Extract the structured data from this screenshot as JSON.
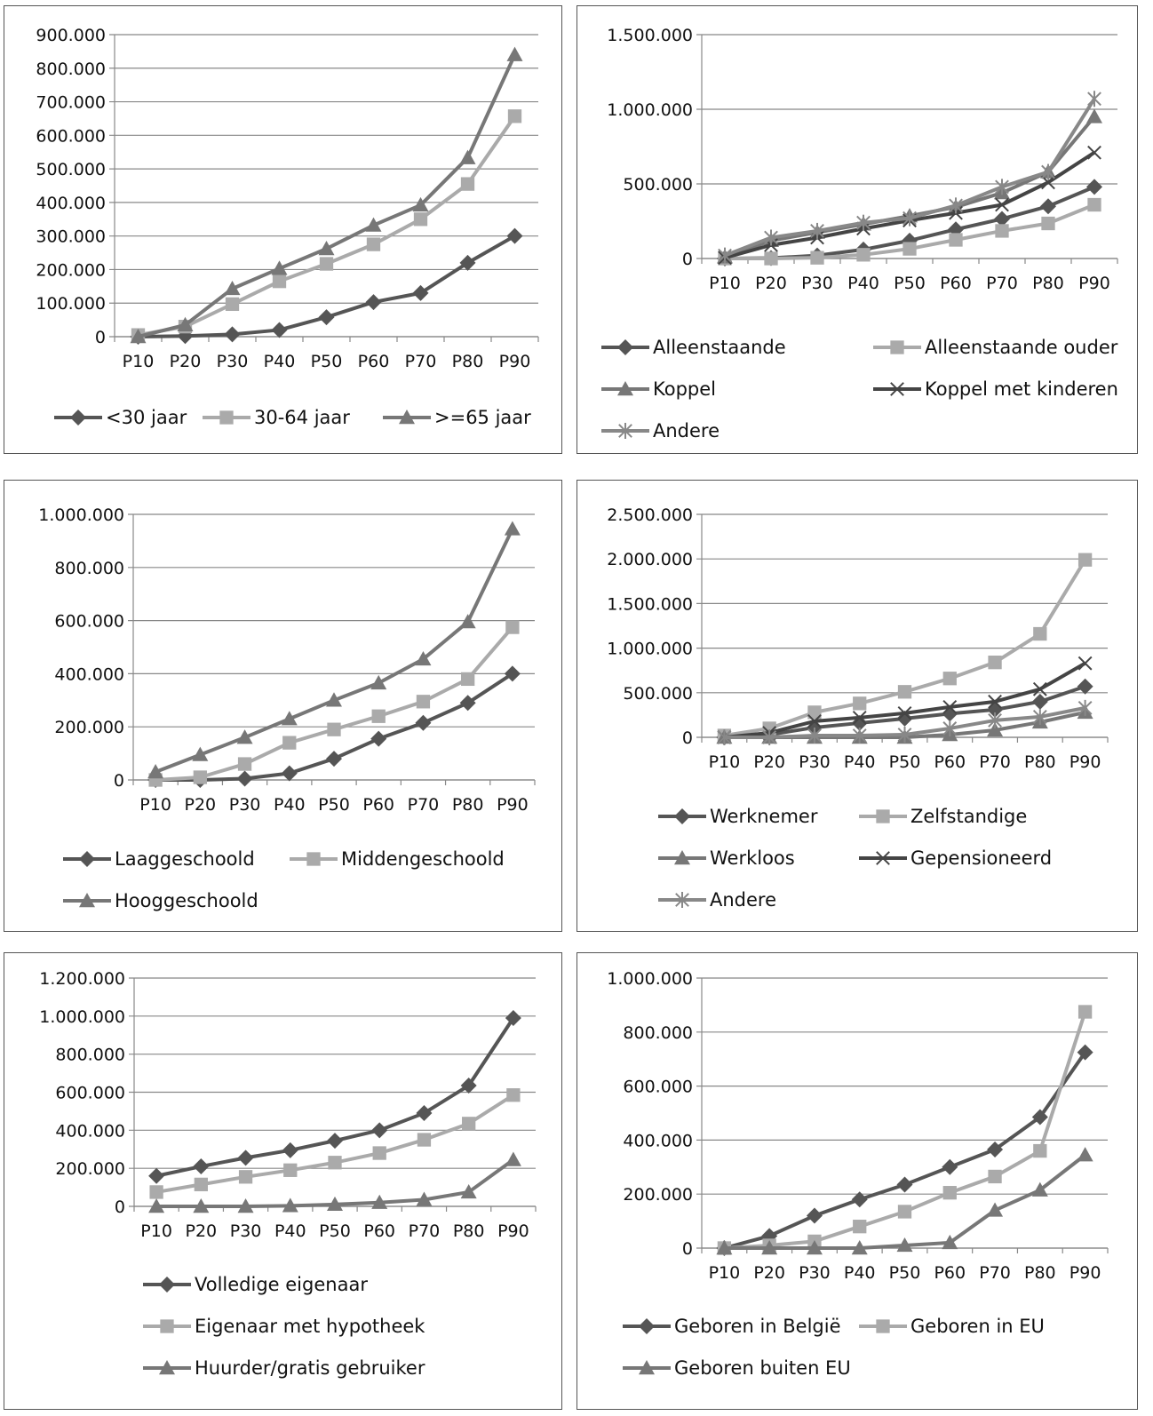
{
  "colors": {
    "dark": "#555555",
    "light": "#aaaaaa",
    "mid": "#777777",
    "darker": "#444444",
    "grey": "#888888"
  },
  "chart_data": [
    {
      "type": "line",
      "categories": [
        "P10",
        "P20",
        "P30",
        "P40",
        "P50",
        "P60",
        "P70",
        "P80",
        "P90"
      ],
      "ylim": [
        0,
        900000
      ],
      "yticks": [
        0,
        100000,
        200000,
        300000,
        400000,
        500000,
        600000,
        700000,
        800000,
        900000
      ],
      "ytick_labels": [
        "0",
        "100.000",
        "200.000",
        "300.000",
        "400.000",
        "500.000",
        "600.000",
        "700.000",
        "800.000",
        "900.000"
      ],
      "legend_position": "bottom",
      "series": [
        {
          "name": "<30 jaar",
          "marker": "diamond",
          "color": "#555555",
          "values": [
            0,
            2000,
            7000,
            20000,
            58000,
            103000,
            130000,
            220000,
            300000
          ]
        },
        {
          "name": "30-64 jaar",
          "marker": "square",
          "color": "#aaaaaa",
          "values": [
            5000,
            30000,
            97000,
            165000,
            217000,
            275000,
            350000,
            455000,
            657000
          ]
        },
        {
          "name": ">=65 jaar",
          "marker": "triangle",
          "color": "#777777",
          "values": [
            0,
            35000,
            143000,
            203000,
            262000,
            332000,
            392000,
            533000,
            840000
          ]
        }
      ]
    },
    {
      "type": "line",
      "categories": [
        "P10",
        "P20",
        "P30",
        "P40",
        "P50",
        "P60",
        "P70",
        "P80",
        "P90"
      ],
      "ylim": [
        0,
        1500000
      ],
      "yticks": [
        0,
        500000,
        1000000,
        1500000
      ],
      "ytick_labels": [
        "0",
        "500.000",
        "1.000.000",
        "1.500.000"
      ],
      "legend_position": "bottom",
      "series": [
        {
          "name": "Alleenstaande",
          "marker": "diamond",
          "color": "#555555",
          "values": [
            0,
            3000,
            20000,
            60000,
            120000,
            195000,
            265000,
            350000,
            480000
          ]
        },
        {
          "name": "Alleenstaande ouder",
          "marker": "square",
          "color": "#aaaaaa",
          "values": [
            0,
            0,
            5000,
            25000,
            65000,
            125000,
            185000,
            235000,
            360000
          ]
        },
        {
          "name": "Koppel",
          "marker": "triangle",
          "color": "#777777",
          "values": [
            10000,
            120000,
            175000,
            230000,
            285000,
            345000,
            440000,
            580000,
            950000
          ]
        },
        {
          "name": "Koppel met kinderen",
          "marker": "x",
          "color": "#444444",
          "values": [
            5000,
            90000,
            140000,
            200000,
            255000,
            305000,
            360000,
            510000,
            710000
          ]
        },
        {
          "name": "Andere",
          "marker": "star",
          "color": "#888888",
          "values": [
            20000,
            140000,
            185000,
            240000,
            270000,
            355000,
            480000,
            580000,
            1070000
          ]
        }
      ]
    },
    {
      "type": "line",
      "categories": [
        "P10",
        "P20",
        "P30",
        "P40",
        "P50",
        "P60",
        "P70",
        "P80",
        "P90"
      ],
      "ylim": [
        0,
        1000000
      ],
      "yticks": [
        0,
        200000,
        400000,
        600000,
        800000,
        1000000
      ],
      "ytick_labels": [
        "0",
        "200.000",
        "400.000",
        "600.000",
        "800.000",
        "1.000.000"
      ],
      "legend_position": "bottom",
      "series": [
        {
          "name": "Laaggeschoold",
          "marker": "diamond",
          "color": "#555555",
          "values": [
            0,
            0,
            5000,
            25000,
            80000,
            155000,
            215000,
            290000,
            400000
          ]
        },
        {
          "name": "Middengeschoold",
          "marker": "square",
          "color": "#aaaaaa",
          "values": [
            0,
            10000,
            60000,
            140000,
            190000,
            240000,
            295000,
            380000,
            575000
          ]
        },
        {
          "name": "Hooggeschoold",
          "marker": "triangle",
          "color": "#777777",
          "values": [
            30000,
            95000,
            160000,
            230000,
            300000,
            365000,
            455000,
            595000,
            945000
          ]
        }
      ]
    },
    {
      "type": "line",
      "categories": [
        "P10",
        "P20",
        "P30",
        "P40",
        "P50",
        "P60",
        "P70",
        "P80",
        "P90"
      ],
      "ylim": [
        0,
        2500000
      ],
      "yticks": [
        0,
        500000,
        1000000,
        1500000,
        2000000,
        2500000
      ],
      "ytick_labels": [
        "0",
        "500.000",
        "1.000.000",
        "1.500.000",
        "2.000.000",
        "2.500.000"
      ],
      "legend_position": "bottom",
      "series": [
        {
          "name": "Werknemer",
          "marker": "diamond",
          "color": "#555555",
          "values": [
            0,
            30000,
            110000,
            160000,
            210000,
            265000,
            310000,
            400000,
            570000
          ]
        },
        {
          "name": "Zelfstandige",
          "marker": "square",
          "color": "#aaaaaa",
          "values": [
            20000,
            100000,
            280000,
            380000,
            510000,
            660000,
            840000,
            1160000,
            1990000
          ]
        },
        {
          "name": "Werkloos",
          "marker": "triangle",
          "color": "#777777",
          "values": [
            0,
            0,
            0,
            0,
            0,
            30000,
            80000,
            170000,
            280000
          ]
        },
        {
          "name": "Gepensioneerd",
          "marker": "x",
          "color": "#444444",
          "values": [
            0,
            50000,
            180000,
            220000,
            270000,
            340000,
            400000,
            540000,
            830000
          ]
        },
        {
          "name": "Andere",
          "marker": "star",
          "color": "#888888",
          "values": [
            0,
            0,
            20000,
            20000,
            30000,
            100000,
            190000,
            230000,
            330000
          ]
        }
      ]
    },
    {
      "type": "line",
      "categories": [
        "P10",
        "P20",
        "P30",
        "P40",
        "P50",
        "P60",
        "P70",
        "P80",
        "P90"
      ],
      "ylim": [
        0,
        1200000
      ],
      "yticks": [
        0,
        200000,
        400000,
        600000,
        800000,
        1000000,
        1200000
      ],
      "ytick_labels": [
        "0",
        "200.000",
        "400.000",
        "600.000",
        "800.000",
        "1.000.000",
        "1.200.000"
      ],
      "legend_position": "bottom",
      "series": [
        {
          "name": "Volledige eigenaar",
          "marker": "diamond",
          "color": "#555555",
          "values": [
            160000,
            210000,
            255000,
            295000,
            345000,
            400000,
            490000,
            635000,
            990000
          ]
        },
        {
          "name": "Eigenaar met hypotheek",
          "marker": "square",
          "color": "#aaaaaa",
          "values": [
            75000,
            115000,
            155000,
            190000,
            230000,
            280000,
            350000,
            435000,
            585000
          ]
        },
        {
          "name": "Huurder/gratis gebruiker",
          "marker": "triangle",
          "color": "#777777",
          "values": [
            0,
            0,
            0,
            3000,
            10000,
            20000,
            35000,
            75000,
            245000
          ]
        }
      ]
    },
    {
      "type": "line",
      "categories": [
        "P10",
        "P20",
        "P30",
        "P40",
        "P50",
        "P60",
        "P70",
        "P80",
        "P90"
      ],
      "ylim": [
        0,
        1000000
      ],
      "yticks": [
        0,
        200000,
        400000,
        600000,
        800000,
        1000000
      ],
      "ytick_labels": [
        "0",
        "200.000",
        "400.000",
        "600.000",
        "800.000",
        "1.000.000"
      ],
      "legend_position": "bottom",
      "series": [
        {
          "name": "Geboren in België",
          "marker": "diamond",
          "color": "#555555",
          "values": [
            0,
            45000,
            120000,
            180000,
            235000,
            300000,
            365000,
            485000,
            725000
          ]
        },
        {
          "name": "Geboren in EU",
          "marker": "square",
          "color": "#aaaaaa",
          "values": [
            0,
            10000,
            25000,
            80000,
            135000,
            205000,
            265000,
            360000,
            875000
          ]
        },
        {
          "name": "Geboren buiten EU",
          "marker": "triangle",
          "color": "#777777",
          "values": [
            0,
            0,
            0,
            0,
            10000,
            20000,
            140000,
            215000,
            345000
          ]
        }
      ]
    }
  ]
}
